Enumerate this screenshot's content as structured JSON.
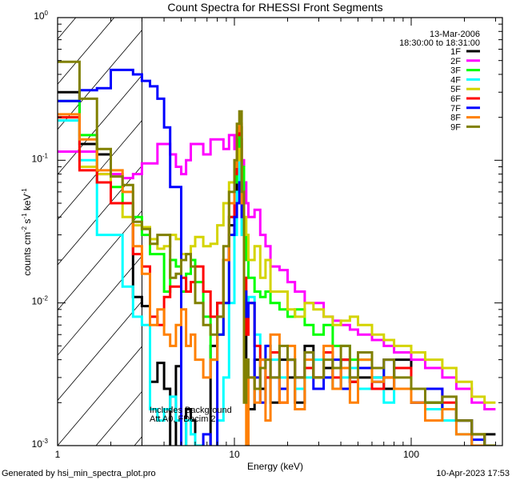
{
  "chart_data": {
    "type": "line",
    "step": true,
    "title": "Count Spectra for RHESSI Front Segments",
    "xlabel": "Energy (keV)",
    "ylabel": "counts cm",
    "ylabel_parts": {
      "a": "counts cm",
      "b": "-2",
      "c": " s",
      "d": "-1",
      "e": " keV",
      "f": "-1"
    },
    "xscale": "log",
    "yscale": "log",
    "xlim": [
      1,
      328
    ],
    "ylim": [
      0.001,
      1
    ],
    "x_ticks": [
      {
        "value": 1,
        "label": "1"
      },
      {
        "value": 10,
        "label": "10"
      },
      {
        "value": 100,
        "label": "100"
      }
    ],
    "y_ticks": [
      {
        "value": 1,
        "base": "10",
        "exp": "0"
      },
      {
        "value": 0.1,
        "base": "10",
        "exp": "-1"
      },
      {
        "value": 0.01,
        "base": "10",
        "exp": "-2"
      },
      {
        "value": 0.001,
        "base": "10",
        "exp": "-3"
      }
    ],
    "shaded_region": [
      1,
      3
    ],
    "legend_position": "top-right",
    "legend_header": [
      "13-Mar-2006",
      "18:30:00 to 18:31:00"
    ],
    "annotations": [
      "Includes Background",
      "Att A0, FDecim 2"
    ],
    "bin_edges": [
      1,
      1.33,
      1.67,
      2,
      2.33,
      2.67,
      3,
      3.33,
      3.67,
      4,
      4.33,
      4.67,
      5,
      5.33,
      5.67,
      6,
      6.67,
      7.33,
      8,
      8.67,
      9.33,
      10,
      10.33,
      10.67,
      11,
      11.33,
      11.67,
      12,
      13,
      14,
      15,
      16,
      18,
      20,
      22,
      25,
      28,
      32,
      36,
      40,
      45,
      50,
      60,
      70,
      80,
      100,
      120,
      150,
      180,
      220,
      260,
      300
    ],
    "series": [
      {
        "name": "1F",
        "color": "#000000",
        "values": [
          0.3,
          0.13,
          0.11,
          0.05,
          0.05,
          0.011,
          0.0095,
          0.0028,
          0.0038,
          0.0025,
          0.0009,
          0.0036,
          0.0009,
          0.0018,
          0.0015,
          0.0009,
          0.0009,
          0.005,
          0.01,
          0.02,
          0.035,
          0.06,
          0.12,
          0.14,
          0.05,
          0.01,
          0.004,
          0.0018,
          0.004,
          0.0025,
          0.003,
          0.002,
          0.004,
          0.003,
          0.002,
          0.005,
          0.003,
          0.0035,
          0.0025,
          0.004,
          0.0028,
          0.003,
          0.003,
          0.0025,
          0.004,
          0.0025,
          0.002,
          0.0018,
          0.0015,
          0.0009,
          0.0012
        ]
      },
      {
        "name": "2F",
        "color": "#ff00ff",
        "values": [
          0.115,
          0.115,
          0.08,
          0.08,
          0.075,
          0.08,
          0.095,
          0.095,
          0.13,
          0.13,
          0.11,
          0.09,
          0.08,
          0.1,
          0.13,
          0.13,
          0.11,
          0.14,
          0.14,
          0.12,
          0.15,
          0.12,
          0.09,
          0.13,
          0.1,
          0.07,
          0.05,
          0.04,
          0.045,
          0.03,
          0.025,
          0.018,
          0.017,
          0.014,
          0.012,
          0.01,
          0.01,
          0.008,
          0.0075,
          0.007,
          0.0065,
          0.006,
          0.0055,
          0.005,
          0.0045,
          0.004,
          0.0035,
          0.003,
          0.0025,
          0.002,
          0.0018
        ]
      },
      {
        "name": "3F",
        "color": "#00ff00",
        "values": [
          0.26,
          0.15,
          0.07,
          0.065,
          0.05,
          0.04,
          0.03,
          0.022,
          0.022,
          0.012,
          0.02,
          0.018,
          0.012,
          0.016,
          0.02,
          0.014,
          0.008,
          0.004,
          0.006,
          0.01,
          0.04,
          0.07,
          0.12,
          0.17,
          0.09,
          0.03,
          0.02,
          0.015,
          0.012,
          0.011,
          0.012,
          0.01,
          0.009,
          0.008,
          0.009,
          0.007,
          0.006,
          0.007,
          0.005,
          0.005,
          0.004,
          0.004,
          0.0035,
          0.003,
          0.0035,
          0.0025,
          0.002,
          0.0018,
          0.0015,
          0.0012,
          0.001
        ]
      },
      {
        "name": "4F",
        "color": "#00ffff",
        "values": [
          0.19,
          0.1,
          0.03,
          0.03,
          0.013,
          0.008,
          0.007,
          0.0018,
          0.0015,
          0.0018,
          0.0022,
          0.0015,
          0.0009,
          0.0015,
          0.0012,
          0.001,
          0.0009,
          0.0009,
          0.0015,
          0.003,
          0.01,
          0.03,
          0.06,
          0.1,
          0.03,
          0.012,
          0.009,
          0.011,
          0.006,
          0.004,
          0.005,
          0.004,
          0.003,
          0.004,
          0.0025,
          0.003,
          0.004,
          0.003,
          0.0025,
          0.003,
          0.0035,
          0.0025,
          0.003,
          0.002,
          0.0025,
          0.002,
          0.0018,
          0.0015,
          0.0012,
          0.001,
          0.0009
        ]
      },
      {
        "name": "5F",
        "color": "#d4d400",
        "values": [
          0.2,
          0.09,
          0.08,
          0.05,
          0.04,
          0.035,
          0.034,
          0.028,
          0.024,
          0.025,
          0.03,
          0.028,
          0.022,
          0.022,
          0.025,
          0.029,
          0.025,
          0.026,
          0.035,
          0.05,
          0.07,
          0.09,
          0.12,
          0.1,
          0.06,
          0.04,
          0.03,
          0.02,
          0.025,
          0.015,
          0.02,
          0.012,
          0.012,
          0.009,
          0.008,
          0.01,
          0.009,
          0.008,
          0.007,
          0.0075,
          0.008,
          0.007,
          0.006,
          0.0055,
          0.005,
          0.0045,
          0.004,
          0.0035,
          0.0028,
          0.0022,
          0.002
        ]
      },
      {
        "name": "6F",
        "color": "#ff0000",
        "values": [
          0.2,
          0.085,
          0.07,
          0.05,
          0.05,
          0.022,
          0.018,
          0.008,
          0.007,
          0.011,
          0.013,
          0.013,
          0.015,
          0.012,
          0.014,
          0.018,
          0.012,
          0.008,
          0.01,
          0.02,
          0.04,
          0.08,
          0.15,
          0.17,
          0.06,
          0.015,
          0.006,
          0.01,
          0.005,
          0.004,
          0.003,
          0.0045,
          0.002,
          0.004,
          0.003,
          0.0035,
          0.003,
          0.0045,
          0.003,
          0.004,
          0.0028,
          0.0035,
          0.0025,
          0.003,
          0.0035,
          0.002,
          0.0025,
          0.002,
          0.0015,
          0.0012,
          0.001
        ]
      },
      {
        "name": "7F",
        "color": "#0000ff",
        "values": [
          0.26,
          0.31,
          0.32,
          0.43,
          0.43,
          0.4,
          0.36,
          0.33,
          0.27,
          0.17,
          0.065,
          0.065,
          0.0009,
          0.0009,
          0.0009,
          0.0009,
          0.0012,
          0.0009,
          0.006,
          0.01,
          0.03,
          0.04,
          0.05,
          0.07,
          0.04,
          0.012,
          0.008,
          0.01,
          0.003,
          0.002,
          0.005,
          0.003,
          0.0025,
          0.004,
          0.003,
          0.0045,
          0.0025,
          0.003,
          0.004,
          0.0025,
          0.003,
          0.0035,
          0.0028,
          0.004,
          0.0025,
          0.002,
          0.0025,
          0.0018,
          0.0015,
          0.0011,
          0.0009
        ]
      },
      {
        "name": "8F",
        "color": "#ff8000",
        "values": [
          0.21,
          0.14,
          0.085,
          0.085,
          0.06,
          0.025,
          0.016,
          0.007,
          0.009,
          0.006,
          0.005,
          0.007,
          0.009,
          0.005,
          0.006,
          0.004,
          0.003,
          0.004,
          0.008,
          0.02,
          0.05,
          0.09,
          0.16,
          0.18,
          0.05,
          0.004,
          0.0009,
          0.003,
          0.002,
          0.004,
          0.0015,
          0.006,
          0.002,
          0.005,
          0.0018,
          0.004,
          0.003,
          0.005,
          0.0025,
          0.0035,
          0.002,
          0.004,
          0.0028,
          0.003,
          0.0025,
          0.002,
          0.0015,
          0.0018,
          0.0012,
          0.001,
          0.0009
        ]
      },
      {
        "name": "9F",
        "color": "#808000",
        "values": [
          0.49,
          0.27,
          0.12,
          0.077,
          0.067,
          0.037,
          0.033,
          0.026,
          0.03,
          0.03,
          0.015,
          0.016,
          0.02,
          0.022,
          0.018,
          0.01,
          0.007,
          0.006,
          0.008,
          0.025,
          0.06,
          0.1,
          0.18,
          0.22,
          0.06,
          0.002,
          0.004,
          0.003,
          0.0025,
          0.0035,
          0.004,
          0.003,
          0.005,
          0.004,
          0.003,
          0.0045,
          0.003,
          0.004,
          0.0035,
          0.005,
          0.003,
          0.0045,
          0.0035,
          0.004,
          0.003,
          0.0025,
          0.002,
          0.0022,
          0.0015,
          0.0012,
          0.001
        ]
      }
    ]
  },
  "footer": {
    "generated_by": "Generated by hsi_min_spectra_plot.pro",
    "timestamp": "10-Apr-2023 17:53"
  }
}
